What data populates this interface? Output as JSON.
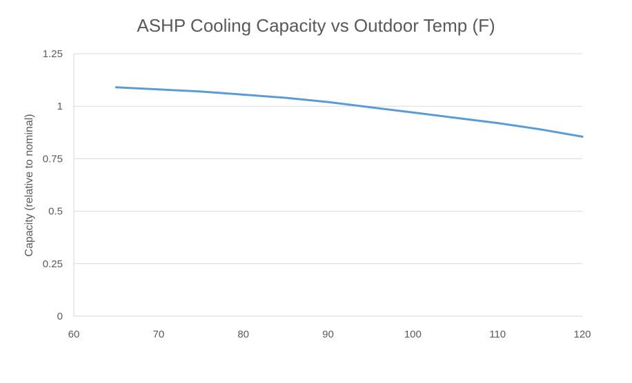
{
  "chart_data": {
    "type": "line",
    "title": "ASHP Cooling Capacity vs Outdoor Temp (F)",
    "xlabel": "",
    "ylabel": "Capacity (relative to nominal)",
    "xlim": [
      60,
      120
    ],
    "ylim": [
      0,
      1.25
    ],
    "x_ticks": [
      "60",
      "70",
      "80",
      "90",
      "100",
      "110",
      "120"
    ],
    "y_ticks": [
      "0",
      "0.25",
      "0.5",
      "0.75",
      "1",
      "1.25"
    ],
    "x_tick_values": [
      60,
      70,
      80,
      90,
      100,
      110,
      120
    ],
    "y_tick_values": [
      0,
      0.25,
      0.5,
      0.75,
      1,
      1.25
    ],
    "grid": true,
    "legend": "none",
    "series": [
      {
        "color": "#5b9bd5",
        "x": [
          65,
          70,
          75,
          80,
          85,
          90,
          95,
          100,
          105,
          110,
          115,
          120
        ],
        "y": [
          1.09,
          1.08,
          1.07,
          1.055,
          1.04,
          1.02,
          0.995,
          0.97,
          0.945,
          0.92,
          0.89,
          0.855
        ]
      }
    ]
  }
}
